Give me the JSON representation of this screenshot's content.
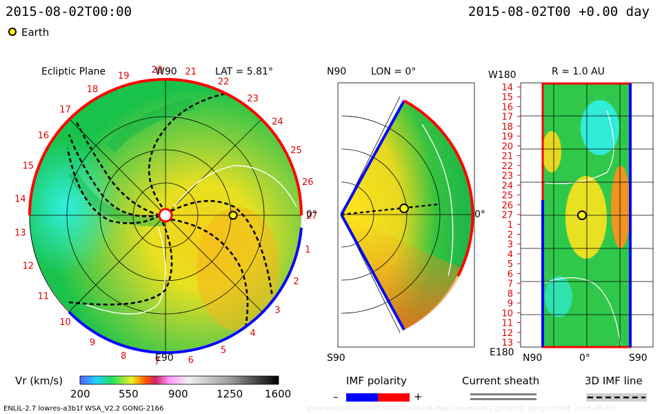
{
  "header": {
    "timestamp": "2015-08-02T00:00",
    "offset": "2015-08-02T00 +0.00 day"
  },
  "legend": {
    "earth_label": "Earth",
    "earth_color": "#ffff00"
  },
  "panels": {
    "ecliptic": {
      "title": "Ecliptic Plane",
      "top_label": "W90",
      "bottom_label": "E90",
      "right_label": "0°",
      "lat_label": "LAT = 5.81°",
      "ticks": [
        "1",
        "2",
        "3",
        "4",
        "5",
        "6",
        "7",
        "8",
        "9",
        "10",
        "11",
        "12",
        "13",
        "14",
        "15",
        "16",
        "17",
        "18",
        "19",
        "20",
        "21",
        "22",
        "23",
        "24",
        "25",
        "26",
        "27"
      ]
    },
    "meridional": {
      "top_label": "N90",
      "lon_label": "LON = 0°",
      "bottom_label": "S90",
      "right_label": "0°"
    },
    "synoptic": {
      "top_left_label": "W180",
      "r_label": "R = 1.0 AU",
      "bottom_left_label": "E180",
      "x_labels": [
        "N90",
        "0°",
        "S90"
      ],
      "y_ticks": [
        "14",
        "15",
        "16",
        "17",
        "18",
        "19",
        "20",
        "21",
        "22",
        "23",
        "24",
        "25",
        "26",
        "27",
        "1",
        "2",
        "3",
        "4",
        "5",
        "6",
        "7",
        "8",
        "9",
        "10",
        "11",
        "12",
        "13"
      ]
    }
  },
  "colorbar": {
    "label": "Vr (km/s)",
    "ticks": [
      "200",
      "550",
      "900",
      "1250",
      "1600"
    ],
    "range": [
      200,
      1600
    ]
  },
  "imf": {
    "title": "IMF polarity",
    "minus": "–",
    "plus": "+",
    "neg_color": "#0000ff",
    "pos_color": "#ff0000"
  },
  "sheath": {
    "title": "Current sheath"
  },
  "imf_line": {
    "title": "3D IMF line"
  },
  "footer": {
    "model": "ENLIL-2.7 lowres-a3b1f WSA_V2.2 GONG-2166",
    "path": "examples/xfwsfi/80015f46x1.a3b1f4-mpf1umen1ed-1.g53q5d2.gong-cr2066     2015-08-03"
  }
}
